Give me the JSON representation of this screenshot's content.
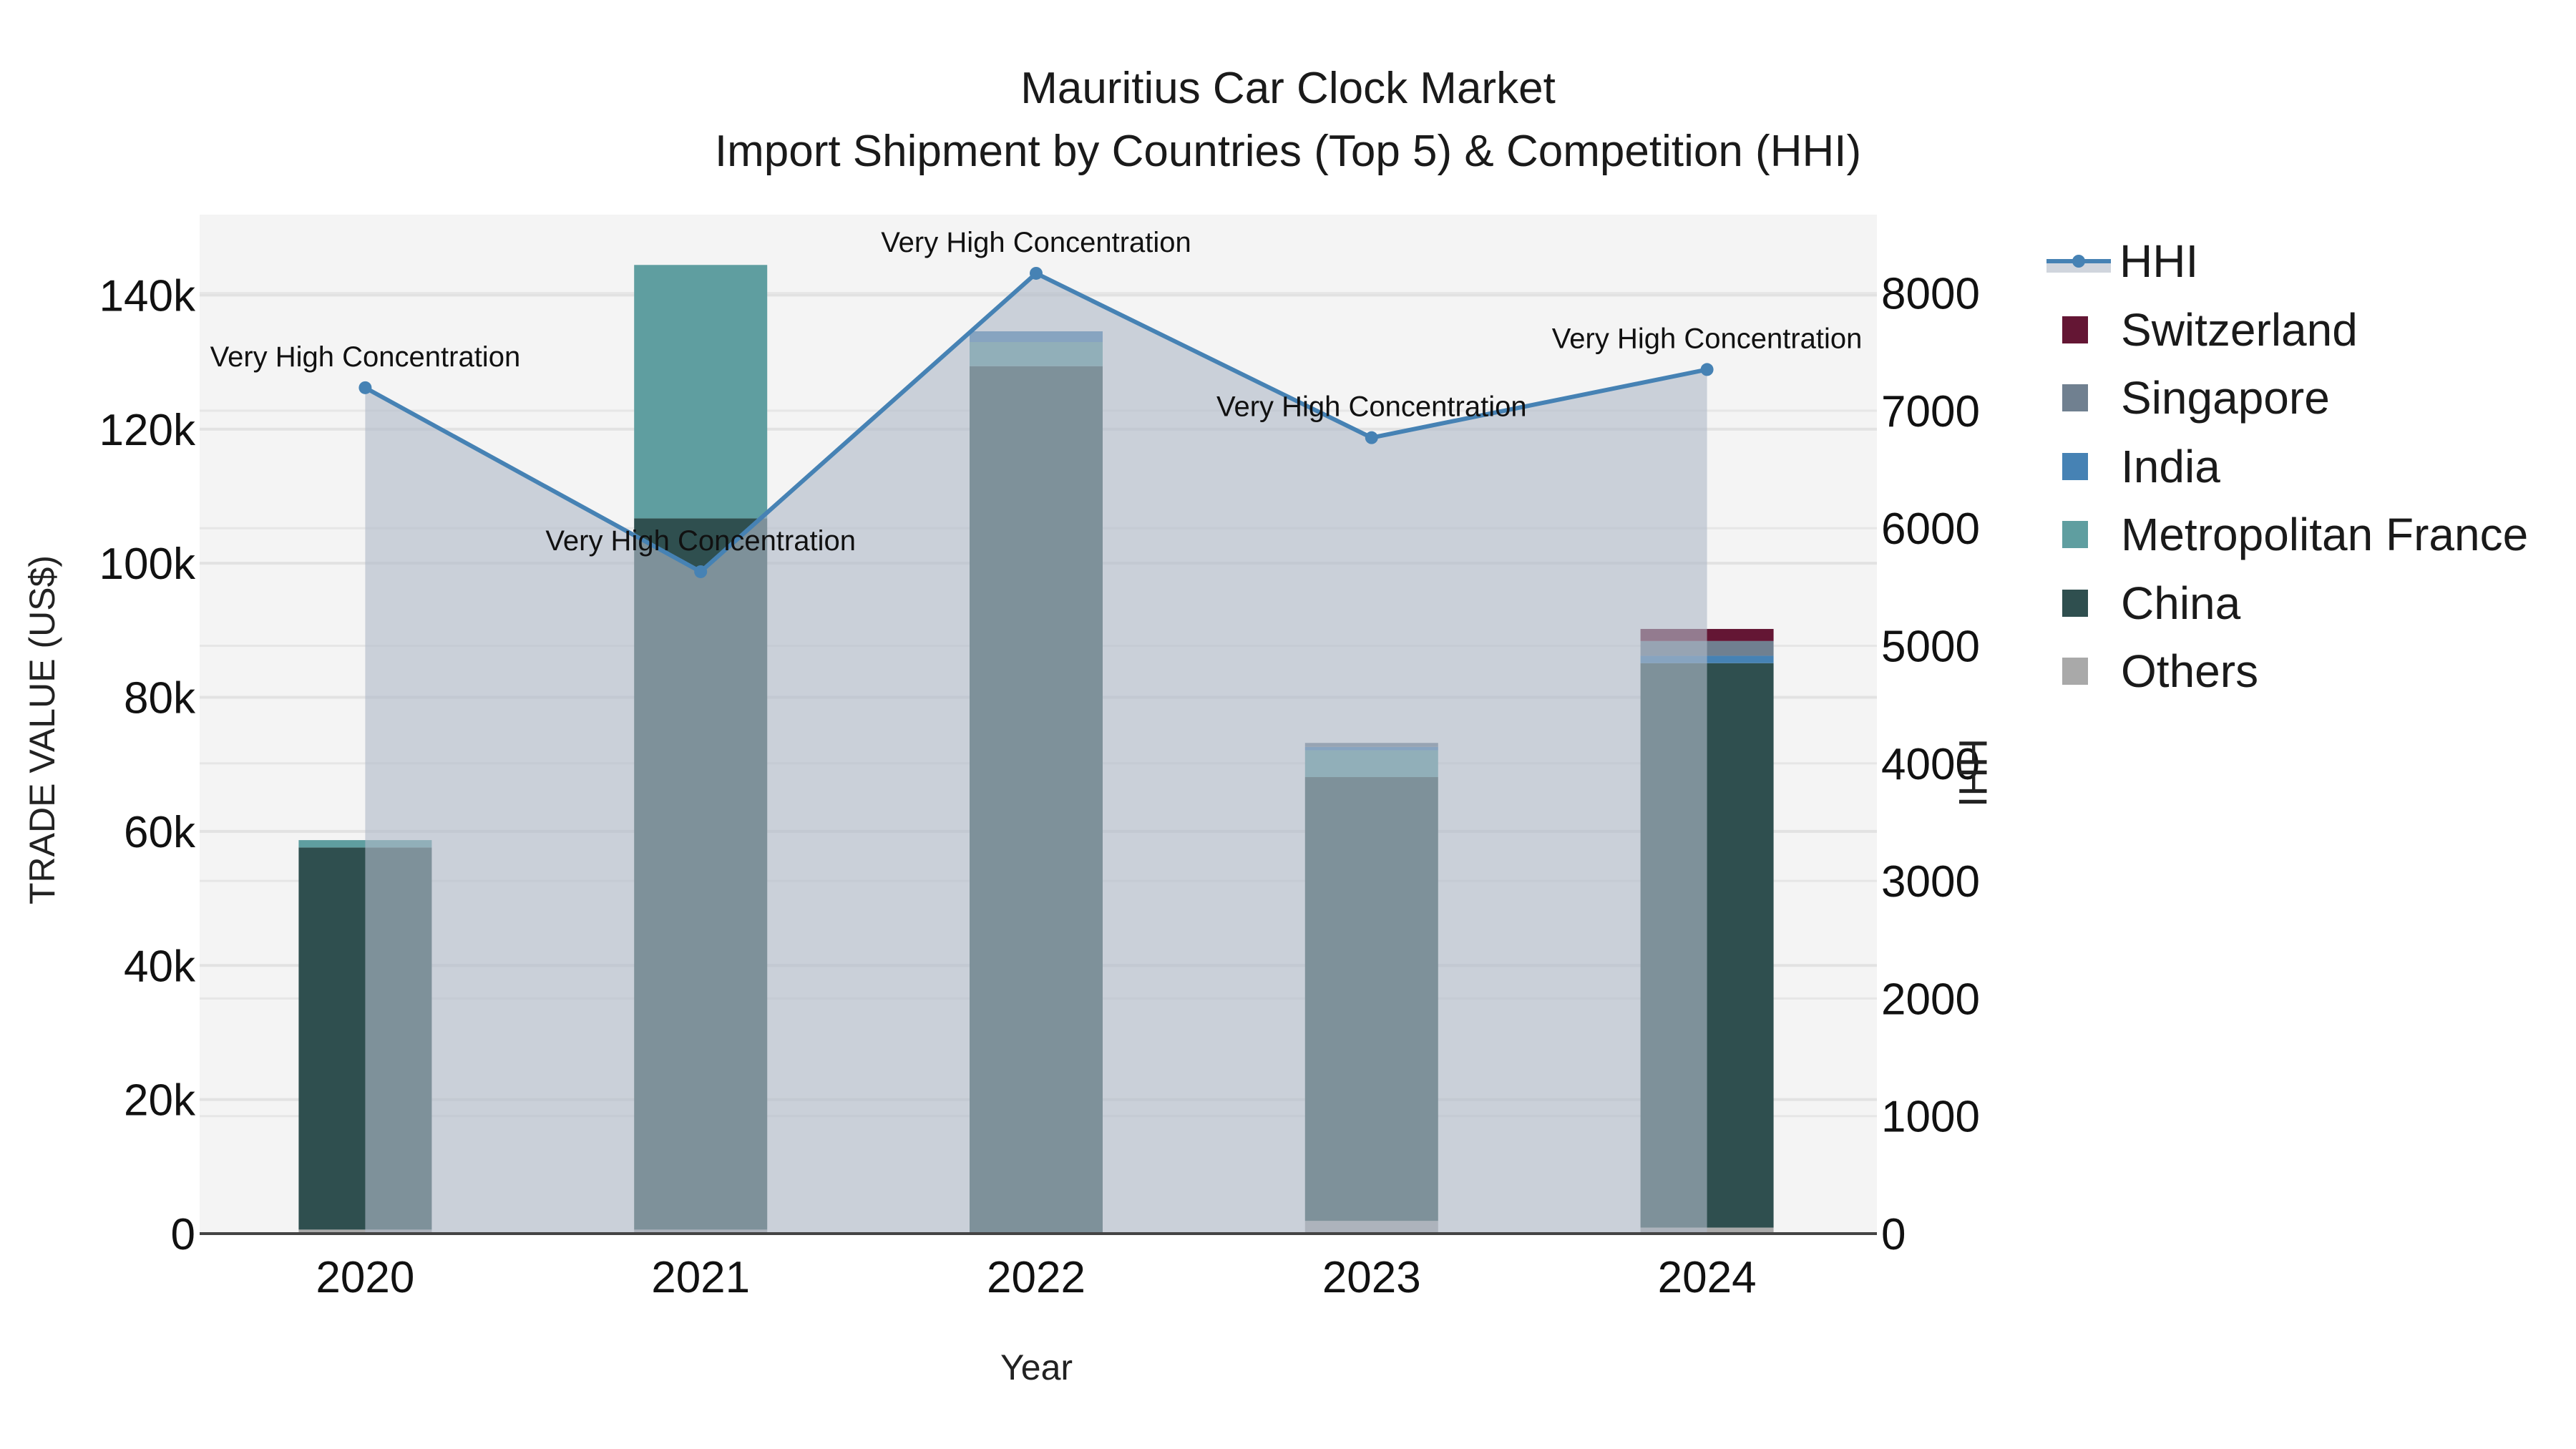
{
  "title": {
    "line1": "Mauritius Car Clock Market",
    "line2": "Import Shipment by Countries (Top 5) & Competition (HHI)"
  },
  "axes": {
    "x_title": "Year",
    "y_left_title": "TRADE VALUE (US$)",
    "y_right_title": "HHI",
    "y_left_ticks": [
      "0",
      "20k",
      "40k",
      "60k",
      "80k",
      "100k",
      "120k",
      "140k"
    ],
    "y_right_ticks": [
      "0",
      "1000",
      "2000",
      "3000",
      "4000",
      "5000",
      "6000",
      "7000",
      "8000"
    ]
  },
  "legend": {
    "items": [
      {
        "label": "HHI",
        "color": "#4682b4",
        "type": "line"
      },
      {
        "label": "Switzerland",
        "color": "#641634",
        "type": "bar"
      },
      {
        "label": "Singapore",
        "color": "#708090",
        "type": "bar"
      },
      {
        "label": "India",
        "color": "#4682b4",
        "type": "bar"
      },
      {
        "label": "Metropolitan France",
        "color": "#5f9ea0",
        "type": "bar"
      },
      {
        "label": "China",
        "color": "#2f4f4f",
        "type": "bar"
      },
      {
        "label": "Others",
        "color": "#a9a9a9",
        "type": "bar"
      }
    ]
  },
  "annotations": [
    "Very High Concentration",
    "Very High Concentration",
    "Very High Concentration",
    "Very High Concentration",
    "Very High Concentration"
  ],
  "chart_data": {
    "type": "bar",
    "title": "Mauritius Car Clock Market — Import Shipment by Countries (Top 5) & Competition (HHI)",
    "xlabel": "Year",
    "ylabel": "TRADE VALUE (US$)",
    "y2label": "HHI",
    "barmode": "stack",
    "categories": [
      "2020",
      "2021",
      "2022",
      "2023",
      "2024"
    ],
    "ylim": [
      0,
      152000
    ],
    "y2lim": [
      0,
      8667
    ],
    "grid": true,
    "legend_position": "right",
    "series": [
      {
        "name": "Others",
        "type": "bar",
        "color": "#a9a9a9",
        "values": [
          600,
          600,
          0,
          1900,
          900
        ]
      },
      {
        "name": "China",
        "type": "bar",
        "color": "#2f4f4f",
        "values": [
          57000,
          106100,
          129400,
          66200,
          84200
        ]
      },
      {
        "name": "Metropolitan France",
        "type": "bar",
        "color": "#5f9ea0",
        "values": [
          1100,
          37800,
          3600,
          4000,
          0
        ]
      },
      {
        "name": "India",
        "type": "bar",
        "color": "#4682b4",
        "values": [
          0,
          0,
          1600,
          500,
          1100
        ]
      },
      {
        "name": "Singapore",
        "type": "bar",
        "color": "#708090",
        "values": [
          0,
          0,
          0,
          600,
          2200
        ]
      },
      {
        "name": "Switzerland",
        "type": "bar",
        "color": "#641634",
        "values": [
          0,
          0,
          0,
          0,
          1800
        ]
      },
      {
        "name": "HHI",
        "type": "line+area",
        "axis": "right",
        "color": "#4682b4",
        "values": [
          7195,
          5630,
          8168,
          6770,
          7350
        ],
        "labels": [
          "Very High Concentration",
          "Very High Concentration",
          "Very High Concentration",
          "Very High Concentration",
          "Very High Concentration"
        ]
      }
    ]
  }
}
